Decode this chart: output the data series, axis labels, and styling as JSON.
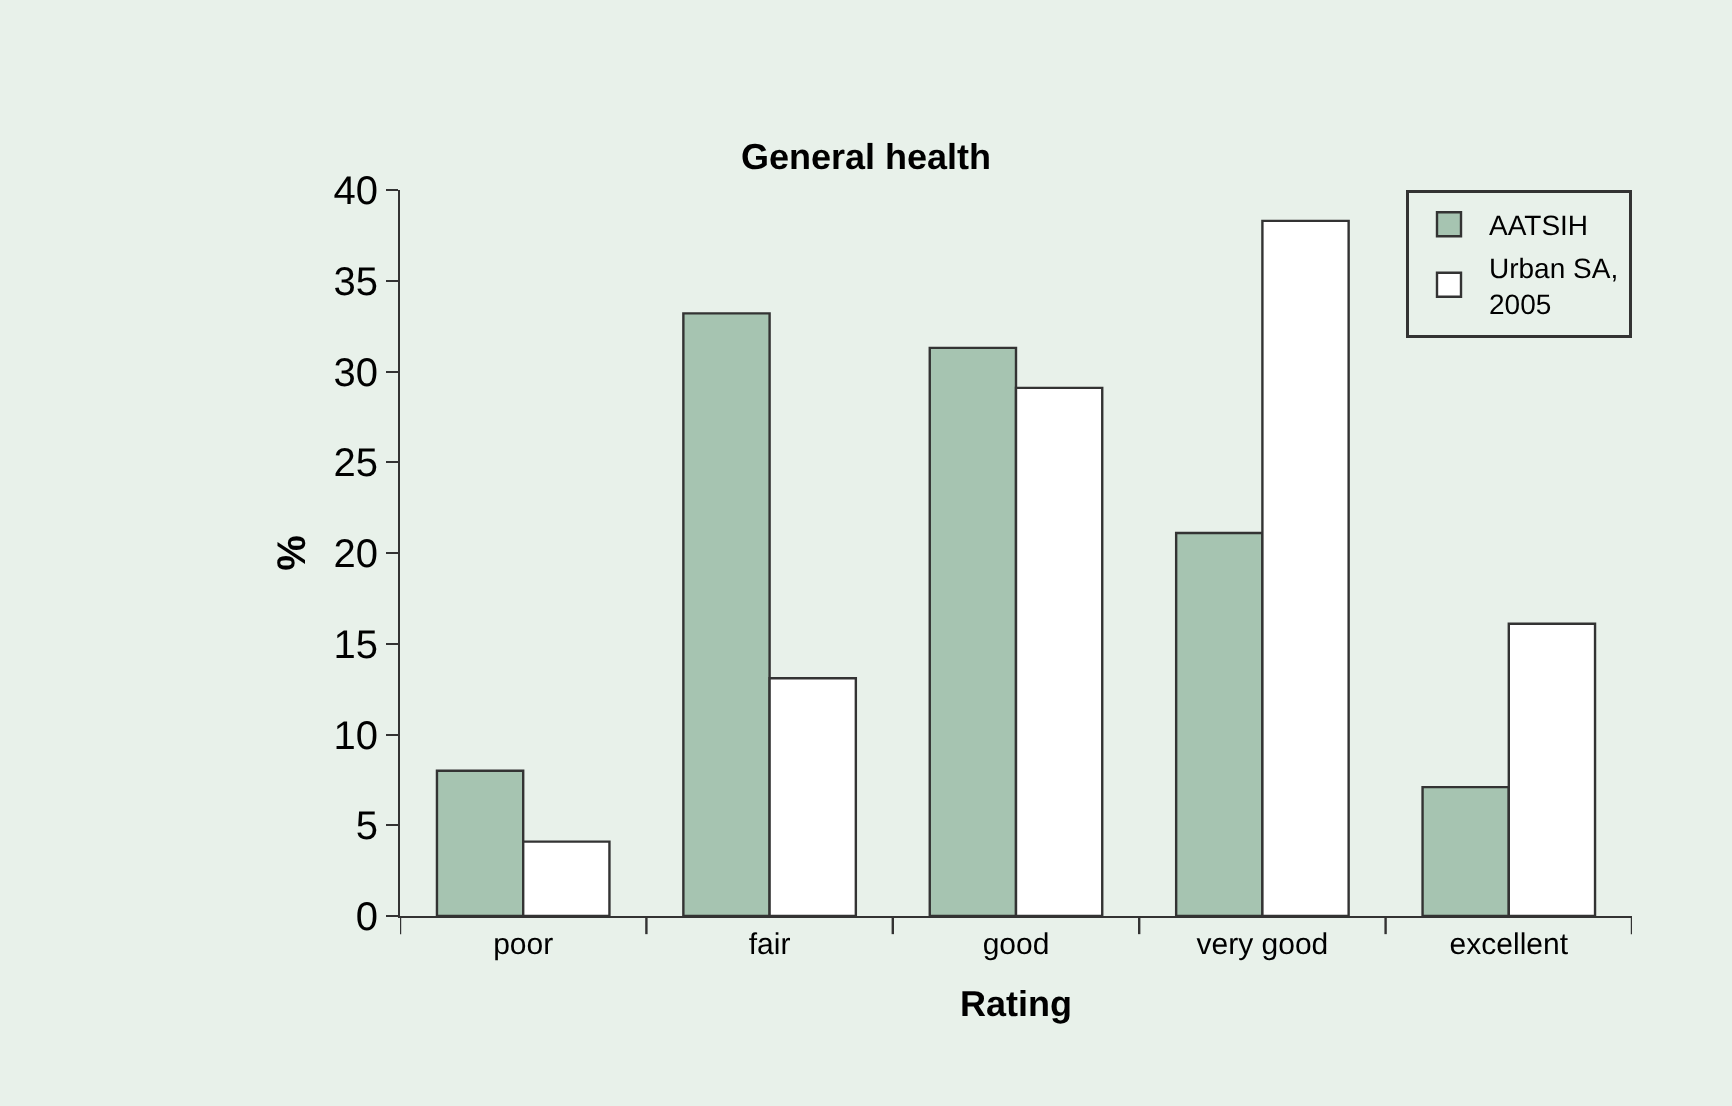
{
  "chart_data": {
    "type": "bar",
    "title": "General health",
    "xlabel": "Rating",
    "ylabel": "%",
    "categories": [
      "poor",
      "fair",
      "good",
      "very good",
      "excellent"
    ],
    "series": [
      {
        "name": "AATSIH",
        "color": "#a6c4b1",
        "values": [
          8.0,
          33.2,
          31.3,
          21.1,
          7.1
        ]
      },
      {
        "name": "Urban SA, 2005",
        "color": "#ffffff",
        "values": [
          4.1,
          13.1,
          29.1,
          38.3,
          16.1
        ]
      }
    ],
    "ylim": [
      0,
      40
    ],
    "yticks": [
      0,
      5,
      10,
      15,
      20,
      25,
      30,
      35,
      40
    ],
    "grid": false,
    "legend": "top right"
  }
}
